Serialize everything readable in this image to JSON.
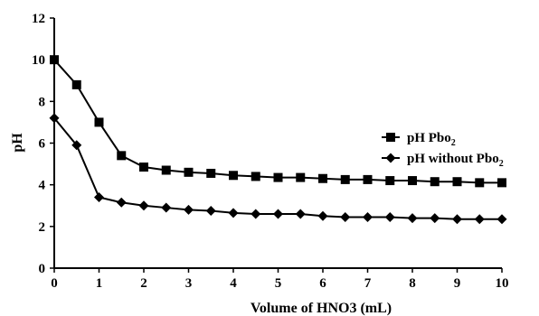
{
  "chart_data": {
    "type": "line",
    "title": "",
    "xlabel": "Volume of HNO3 (mL)",
    "ylabel": "pH",
    "xlim": [
      0,
      10
    ],
    "ylim": [
      0,
      12
    ],
    "xticks": [
      "0",
      "1",
      "2",
      "3",
      "4",
      "5",
      "6",
      "7",
      "8",
      "9",
      "10"
    ],
    "yticks": [
      "0",
      "2",
      "4",
      "6",
      "8",
      "10",
      "12"
    ],
    "grid": false,
    "legend_position": "right",
    "x": [
      0,
      0.5,
      1,
      1.5,
      2,
      2.5,
      3,
      3.5,
      4,
      4.5,
      5,
      5.5,
      6,
      6.5,
      7,
      7.5,
      8,
      8.5,
      9,
      9.5,
      10
    ],
    "series": [
      {
        "name": "pH  Pbo",
        "name_subscript": "2",
        "marker": "square",
        "color": "#000000",
        "values": [
          10.0,
          8.8,
          7.0,
          5.4,
          4.85,
          4.7,
          4.6,
          4.55,
          4.45,
          4.4,
          4.35,
          4.35,
          4.3,
          4.25,
          4.25,
          4.2,
          4.2,
          4.15,
          4.15,
          4.1,
          4.1
        ]
      },
      {
        "name": "pH without Pbo",
        "name_subscript": "2",
        "marker": "diamond",
        "color": "#000000",
        "values": [
          7.2,
          5.9,
          3.4,
          3.15,
          3.0,
          2.9,
          2.8,
          2.75,
          2.65,
          2.6,
          2.6,
          2.6,
          2.5,
          2.45,
          2.45,
          2.45,
          2.4,
          2.4,
          2.35,
          2.35,
          2.35
        ]
      }
    ]
  }
}
